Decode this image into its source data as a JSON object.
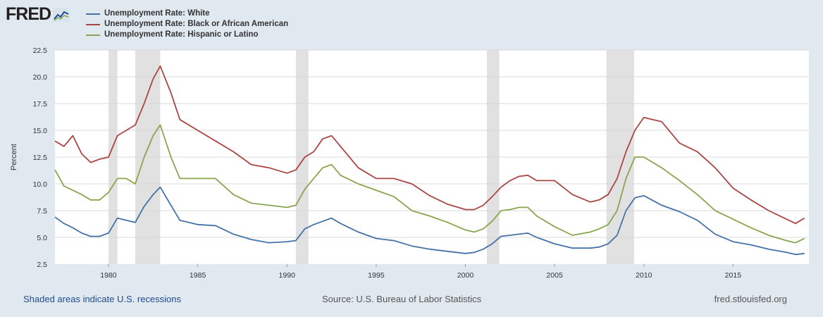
{
  "logo": {
    "text": "FRED",
    "icon": "fred-chart-icon"
  },
  "footer": {
    "recessions_note": "Shaded areas indicate U.S. recessions",
    "source": "Source: U.S. Bureau of Labor Statistics",
    "site": "fred.stlouisfed.org"
  },
  "colors": {
    "white": "#4572a7",
    "black": "#aa4643",
    "hispanic": "#89a54e",
    "recession": "#e1e1e1"
  },
  "chart_data": {
    "type": "line",
    "title": "",
    "xlabel": "",
    "ylabel": "Percent",
    "xlim": [
      1977.0,
      2019.25
    ],
    "ylim": [
      2.5,
      22.5
    ],
    "yticks": [
      2.5,
      5.0,
      7.5,
      10.0,
      12.5,
      15.0,
      17.5,
      20.0,
      22.5
    ],
    "ytick_labels": [
      "2.5",
      "5.0",
      "7.5",
      "10.0",
      "12.5",
      "15.0",
      "17.5",
      "20.0",
      "22.5"
    ],
    "xticks": [
      1980,
      1985,
      1990,
      1995,
      2000,
      2005,
      2010,
      2015
    ],
    "xtick_labels": [
      "1980",
      "1985",
      "1990",
      "1995",
      "2000",
      "2005",
      "2010",
      "2015"
    ],
    "recessions": [
      [
        1980.0,
        1980.5
      ],
      [
        1981.5,
        1982.9
      ],
      [
        1990.5,
        1991.2
      ],
      [
        2001.2,
        2001.9
      ],
      [
        2007.9,
        2009.45
      ]
    ],
    "series": [
      {
        "name": "Unemployment Rate: White",
        "color": "#4572a7",
        "x": [
          1977.0,
          1977.5,
          1978.0,
          1978.5,
          1979.0,
          1979.5,
          1980.0,
          1980.5,
          1981.0,
          1981.5,
          1982.0,
          1982.5,
          1982.9,
          1983.5,
          1984.0,
          1985.0,
          1986.0,
          1987.0,
          1988.0,
          1989.0,
          1990.0,
          1990.5,
          1991.0,
          1991.5,
          1992.0,
          1992.5,
          1993.0,
          1994.0,
          1995.0,
          1996.0,
          1997.0,
          1998.0,
          1999.0,
          2000.0,
          2000.5,
          2001.0,
          2001.5,
          2002.0,
          2002.5,
          2003.0,
          2003.5,
          2004.0,
          2005.0,
          2006.0,
          2007.0,
          2007.5,
          2008.0,
          2008.5,
          2009.0,
          2009.5,
          2010.0,
          2011.0,
          2012.0,
          2013.0,
          2014.0,
          2015.0,
          2016.0,
          2017.0,
          2018.0,
          2018.5,
          2019.0
        ],
        "y": [
          6.9,
          6.3,
          5.9,
          5.4,
          5.1,
          5.1,
          5.4,
          6.8,
          6.6,
          6.4,
          7.9,
          9.0,
          9.7,
          8.0,
          6.6,
          6.2,
          6.1,
          5.3,
          4.8,
          4.5,
          4.6,
          4.7,
          5.8,
          6.2,
          6.5,
          6.8,
          6.3,
          5.5,
          4.9,
          4.7,
          4.2,
          3.9,
          3.7,
          3.5,
          3.6,
          3.9,
          4.4,
          5.1,
          5.2,
          5.3,
          5.4,
          5.0,
          4.4,
          4.0,
          4.0,
          4.1,
          4.4,
          5.2,
          7.5,
          8.7,
          8.9,
          8.0,
          7.4,
          6.6,
          5.3,
          4.6,
          4.3,
          3.9,
          3.6,
          3.4,
          3.5
        ]
      },
      {
        "name": "Unemployment Rate: Black or African American",
        "color": "#aa4643",
        "x": [
          1977.0,
          1977.5,
          1978.0,
          1978.5,
          1979.0,
          1979.5,
          1980.0,
          1980.5,
          1981.0,
          1981.5,
          1982.0,
          1982.5,
          1982.9,
          1983.5,
          1984.0,
          1985.0,
          1986.0,
          1987.0,
          1988.0,
          1989.0,
          1990.0,
          1990.5,
          1991.0,
          1991.5,
          1992.0,
          1992.5,
          1993.0,
          1994.0,
          1995.0,
          1996.0,
          1997.0,
          1998.0,
          1999.0,
          2000.0,
          2000.5,
          2001.0,
          2001.5,
          2002.0,
          2002.5,
          2003.0,
          2003.5,
          2004.0,
          2005.0,
          2006.0,
          2007.0,
          2007.5,
          2008.0,
          2008.5,
          2009.0,
          2009.5,
          2010.0,
          2011.0,
          2012.0,
          2013.0,
          2014.0,
          2015.0,
          2016.0,
          2017.0,
          2018.0,
          2018.5,
          2019.0
        ],
        "y": [
          14.0,
          13.5,
          14.5,
          12.8,
          12.0,
          12.3,
          12.5,
          14.5,
          15.0,
          15.5,
          17.5,
          19.8,
          21.0,
          18.5,
          16.0,
          15.0,
          14.0,
          13.0,
          11.8,
          11.5,
          11.0,
          11.3,
          12.5,
          13.0,
          14.2,
          14.5,
          13.5,
          11.5,
          10.5,
          10.5,
          10.0,
          8.9,
          8.1,
          7.6,
          7.6,
          8.0,
          8.8,
          9.7,
          10.3,
          10.7,
          10.8,
          10.3,
          10.3,
          9.0,
          8.3,
          8.5,
          9.0,
          10.5,
          13.0,
          15.0,
          16.2,
          15.8,
          13.8,
          13.0,
          11.5,
          9.6,
          8.5,
          7.5,
          6.7,
          6.3,
          6.8
        ]
      },
      {
        "name": "Unemployment Rate: Hispanic or Latino",
        "color": "#89a54e",
        "x": [
          1977.0,
          1977.5,
          1978.0,
          1978.5,
          1979.0,
          1979.5,
          1980.0,
          1980.5,
          1981.0,
          1981.5,
          1982.0,
          1982.5,
          1982.9,
          1983.5,
          1984.0,
          1985.0,
          1986.0,
          1987.0,
          1988.0,
          1989.0,
          1990.0,
          1990.5,
          1991.0,
          1991.5,
          1992.0,
          1992.5,
          1993.0,
          1994.0,
          1995.0,
          1996.0,
          1997.0,
          1998.0,
          1999.0,
          2000.0,
          2000.5,
          2001.0,
          2001.5,
          2002.0,
          2002.5,
          2003.0,
          2003.5,
          2004.0,
          2005.0,
          2006.0,
          2007.0,
          2007.5,
          2008.0,
          2008.5,
          2009.0,
          2009.5,
          2010.0,
          2011.0,
          2012.0,
          2013.0,
          2014.0,
          2015.0,
          2016.0,
          2017.0,
          2018.0,
          2018.5,
          2019.0
        ],
        "y": [
          11.3,
          9.8,
          9.4,
          9.0,
          8.5,
          8.5,
          9.2,
          10.5,
          10.5,
          10.0,
          12.5,
          14.5,
          15.5,
          12.5,
          10.5,
          10.5,
          10.5,
          9.0,
          8.2,
          8.0,
          7.8,
          8.0,
          9.5,
          10.5,
          11.5,
          11.8,
          10.8,
          10.0,
          9.4,
          8.8,
          7.5,
          7.0,
          6.4,
          5.7,
          5.5,
          5.8,
          6.5,
          7.5,
          7.6,
          7.8,
          7.8,
          7.0,
          6.0,
          5.2,
          5.5,
          5.8,
          6.2,
          7.5,
          10.5,
          12.5,
          12.5,
          11.5,
          10.3,
          9.0,
          7.5,
          6.7,
          5.9,
          5.2,
          4.7,
          4.5,
          4.9
        ]
      }
    ]
  }
}
